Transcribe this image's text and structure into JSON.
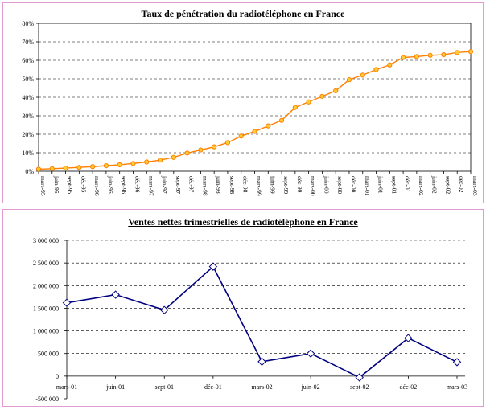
{
  "colors": {
    "panel_border": "#e39ad3",
    "chart1_line": "#ff7f00",
    "chart1_marker": "#ffcc33",
    "chart2_line": "#000080",
    "chart2_marker": "#ffffff",
    "grid": "#000000"
  },
  "chart_data": [
    {
      "type": "line",
      "title": "Taux de pénétration du radiotéléphone en France",
      "xlabel": "",
      "ylabel": "",
      "y_tick_labels": [
        "0%",
        "10%",
        "20%",
        "30%",
        "40%",
        "50%",
        "60%",
        "70%",
        "80%"
      ],
      "ylim": [
        0,
        80
      ],
      "grid": "horizontal dashed",
      "categories": [
        "mars-95",
        "juin-95",
        "sept-95",
        "déc-95",
        "mars-96",
        "juin-96",
        "sept-96",
        "déc-96",
        "mars-97",
        "juin-97",
        "sept-97",
        "déc-97",
        "mars-98",
        "juin-98",
        "sept-98",
        "déc-98",
        "mars-99",
        "juin-99",
        "sept-99",
        "déc-99",
        "mars-00",
        "juin-00",
        "sept-00",
        "déc-00",
        "mars-01",
        "juin-01",
        "sept-01",
        "déc-01",
        "mars-02",
        "juin-02",
        "sept-02",
        "déc-02",
        "mars-03"
      ],
      "values": [
        1.1,
        1.4,
        1.7,
        2.1,
        2.5,
        3.0,
        3.5,
        4.2,
        5.0,
        6.0,
        7.5,
        9.8,
        11.5,
        13.2,
        15.5,
        19.0,
        21.5,
        24.5,
        27.5,
        34.5,
        37.5,
        40.5,
        43.5,
        49.5,
        52.0,
        55.0,
        57.5,
        61.5,
        62.0,
        62.7,
        63.0,
        64.2,
        64.7
      ]
    },
    {
      "type": "line",
      "title": "Ventes nettes trimestrielles de radiotéléphone en France",
      "xlabel": "",
      "ylabel": "",
      "y_tick_labels": [
        "-500 000",
        "0",
        "500 000",
        "1 000 000",
        "1 500 000",
        "2 000 000",
        "2 500 000",
        "3 000 000"
      ],
      "ylim": [
        -500000,
        3000000
      ],
      "grid": "horizontal dashed",
      "categories": [
        "mars-01",
        "juin-01",
        "sept-01",
        "déc-01",
        "mars-02",
        "juin-02",
        "sept-02",
        "déc-02",
        "mars-03"
      ],
      "values": [
        1620000,
        1800000,
        1460000,
        2420000,
        320000,
        500000,
        -30000,
        840000,
        310000
      ]
    }
  ]
}
